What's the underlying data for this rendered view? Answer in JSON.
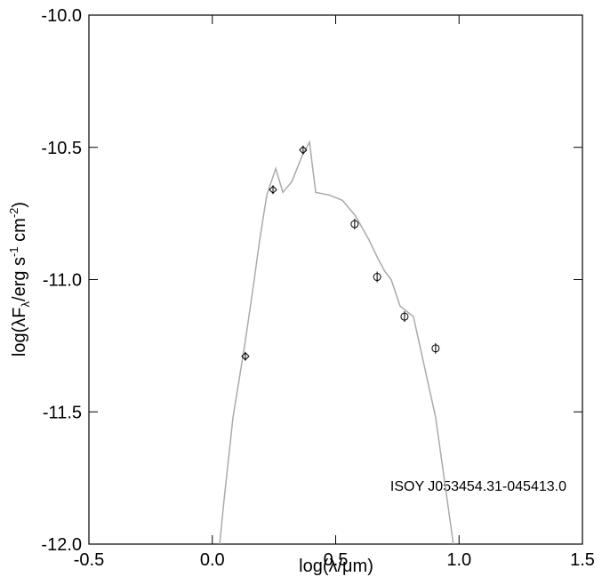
{
  "chart_data": {
    "type": "scatter",
    "xlabel": "log(λ/μm)",
    "ylabel": [
      "log(λF",
      "λ",
      "/erg s",
      "-1",
      " cm",
      "-2",
      ")"
    ],
    "annotation": "ISOY J053454.31-045413.0",
    "xlim": [
      -0.5,
      1.5
    ],
    "xticks": [
      {
        "value": -0.5,
        "label": "-0.5"
      },
      {
        "value": 0,
        "label": "0.0"
      },
      {
        "value": 0.5,
        "label": "0.5"
      },
      {
        "value": 1,
        "label": "1.0"
      },
      {
        "value": 1.5,
        "label": "1.5"
      }
    ],
    "ylim": [
      -12,
      -10
    ],
    "yticks": [
      {
        "value": -12,
        "label": "-12.0"
      },
      {
        "value": -11.5,
        "label": "-11.5"
      },
      {
        "value": -11,
        "label": "-11.0"
      },
      {
        "value": -10.5,
        "label": "-10.5"
      },
      {
        "value": -10,
        "label": "-10.0"
      }
    ],
    "series": [
      {
        "kind": "line",
        "color": "#aaaaaa",
        "x": [
          0.03,
          0.048,
          0.084,
          0.131,
          0.167,
          0.192,
          0.221,
          0.257,
          0.286,
          0.322,
          0.365,
          0.394,
          0.419,
          0.473,
          0.527,
          0.581,
          0.635,
          0.671,
          0.7,
          0.725,
          0.761,
          0.815,
          0.905,
          0.977
        ],
        "values": [
          -12.0,
          -11.83,
          -11.52,
          -11.25,
          -11.02,
          -10.85,
          -10.68,
          -10.58,
          -10.67,
          -10.63,
          -10.53,
          -10.48,
          -10.67,
          -10.68,
          -10.7,
          -10.76,
          -10.85,
          -10.92,
          -10.97,
          -11.0,
          -11.1,
          -11.14,
          -11.52,
          -12.0
        ]
      },
      {
        "kind": "diamond",
        "color": "#000000",
        "x": [
          0.134,
          0.246,
          0.368
        ],
        "values": [
          -11.29,
          -10.66,
          -10.51
        ]
      },
      {
        "kind": "circle",
        "color": "#000000",
        "x": [
          0.577,
          0.668,
          0.779,
          0.905
        ],
        "values": [
          -10.79,
          -10.99,
          -11.14,
          -11.26
        ]
      }
    ]
  }
}
